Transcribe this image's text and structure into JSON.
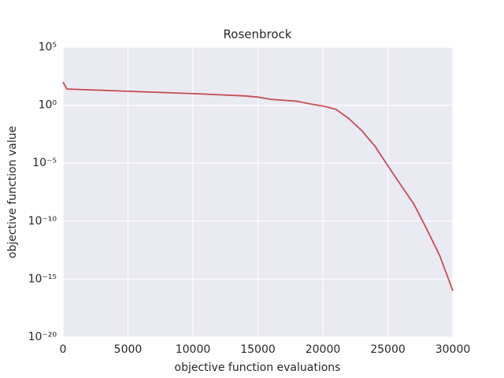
{
  "chart_data": {
    "type": "line",
    "title": "Rosenbrock",
    "xlabel": "objective function evaluations",
    "ylabel": "objective function value",
    "x": [
      0,
      300,
      5000,
      10000,
      14000,
      15000,
      16000,
      18000,
      19000,
      20000,
      21000,
      22000,
      23000,
      24000,
      25000,
      26000,
      27000,
      28000,
      29000,
      30000
    ],
    "series": [
      {
        "name": "Rosenbrock",
        "color": "#c44e52",
        "values": [
          100,
          25,
          16,
          10,
          6.3,
          5,
          3.2,
          2.2,
          1.3,
          0.85,
          0.45,
          0.07,
          0.0063,
          0.0003,
          6e-06,
          1.3e-07,
          3e-09,
          2e-11,
          1e-13,
          1e-16
        ]
      }
    ],
    "xlim": [
      0,
      30000
    ],
    "xticks": [
      0,
      5000,
      10000,
      15000,
      20000,
      25000,
      30000
    ],
    "ylim": [
      1e-20,
      100000
    ],
    "log_y": true,
    "grid": true,
    "yticks": [
      {
        "value": 1e-20,
        "label": "10⁻²⁰"
      },
      {
        "value": 1e-15,
        "label": "10⁻¹⁵"
      },
      {
        "value": 1e-10,
        "label": "10⁻¹⁰"
      },
      {
        "value": 1e-05,
        "label": "10⁻⁵"
      },
      {
        "value": 1,
        "label": "10⁰"
      },
      {
        "value": 100000,
        "label": "10⁵"
      }
    ]
  }
}
